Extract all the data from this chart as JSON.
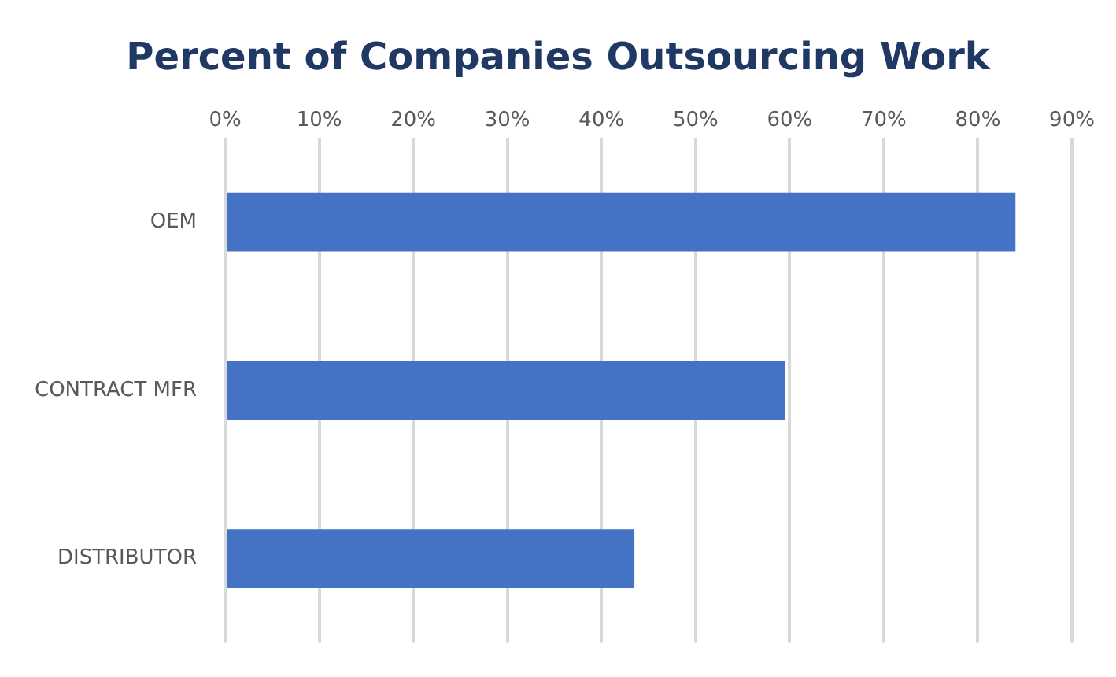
{
  "chart_data": {
    "type": "bar",
    "orientation": "horizontal",
    "title": "Percent of Companies Outsourcing Work",
    "categories": [
      "OEM",
      "CONTRACT MFR",
      "DISTRIBUTOR"
    ],
    "values": [
      84,
      59.5,
      43.5
    ],
    "color": "#4472c4",
    "xlim": [
      0,
      90
    ],
    "xticks": [
      {
        "value": 0,
        "label": "0%"
      },
      {
        "value": 10,
        "label": "10%"
      },
      {
        "value": 20,
        "label": "20%"
      },
      {
        "value": 30,
        "label": "30%"
      },
      {
        "value": 40,
        "label": "40%"
      },
      {
        "value": 50,
        "label": "50%"
      },
      {
        "value": 60,
        "label": "60%"
      },
      {
        "value": 70,
        "label": "70%"
      },
      {
        "value": 80,
        "label": "80%"
      },
      {
        "value": 90,
        "label": "90%"
      }
    ],
    "grid": "x",
    "legend": false
  }
}
